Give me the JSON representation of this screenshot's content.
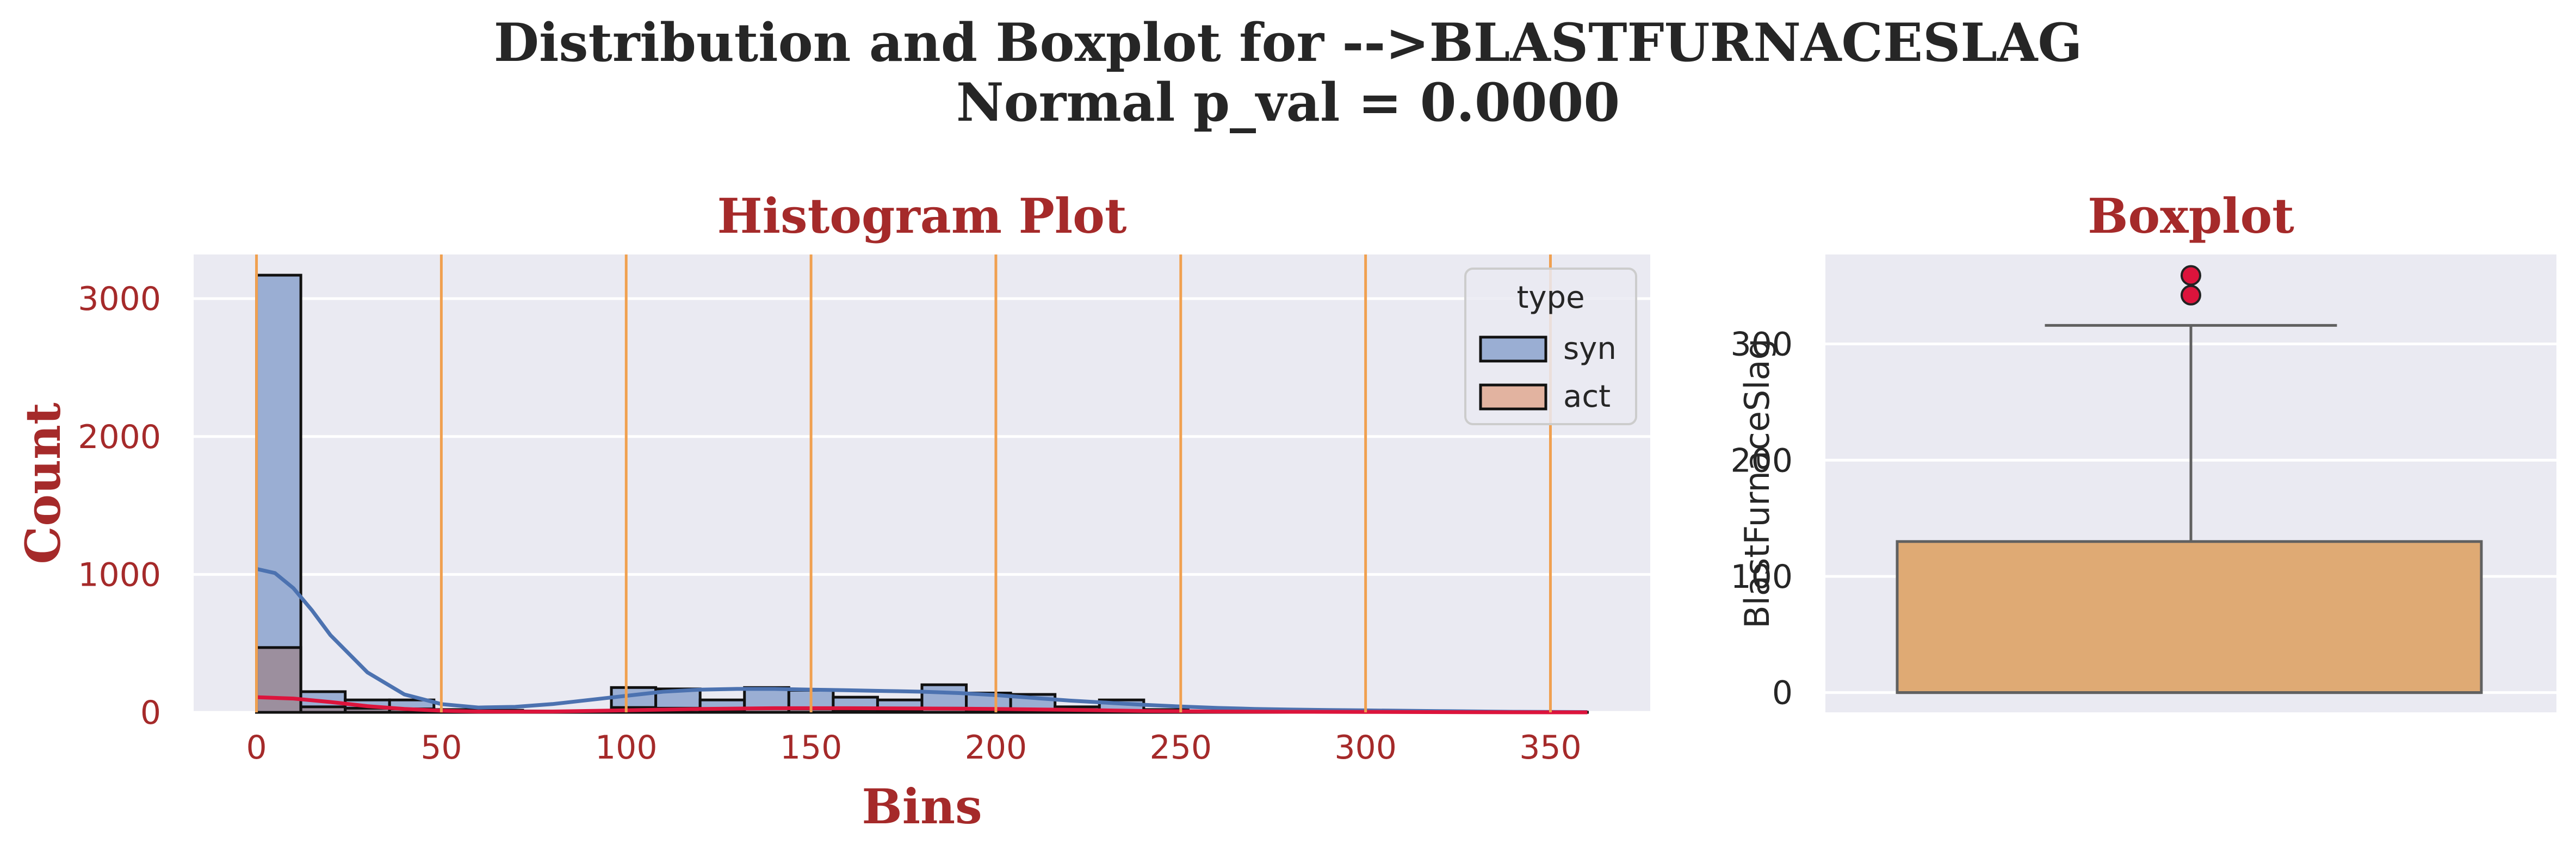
{
  "figure": {
    "suptitle_line1": "Distribution and Boxplot for -->BLASTFURNACESLAG",
    "suptitle_line2": "Normal p_val = 0.0000"
  },
  "colors": {
    "axes_bg": "#eaeaf2",
    "grid": "#ffffff",
    "title_red": "#a52a2a",
    "syn_fill": "#9aaed3",
    "syn_kde": "#4c72b0",
    "act_fill": "#e2b3a0",
    "act_kde": "#dc143c",
    "overlap_fill": "#9c8f9e",
    "vline": "#f0a050",
    "box_fill": "#dfaa74",
    "box_edge": "#606060",
    "outlier": "#dc143c"
  },
  "chart_data": [
    {
      "type": "bar",
      "subtype": "histogram",
      "title": "Histogram Plot",
      "xlabel": "Bins",
      "ylabel": "Count",
      "xlim": [
        -17,
        377
      ],
      "ylim": [
        0,
        3320
      ],
      "xticks": [
        0,
        50,
        100,
        150,
        200,
        250,
        300,
        350
      ],
      "yticks": [
        0,
        1000,
        2000,
        3000
      ],
      "bin_edges": [
        0,
        12,
        24,
        36,
        48,
        60,
        72,
        84,
        96,
        108,
        120,
        132,
        144,
        156,
        168,
        180,
        192,
        204,
        216,
        228,
        240,
        252,
        264,
        276,
        288,
        300,
        312,
        324,
        336,
        348,
        360
      ],
      "series": [
        {
          "name": "syn",
          "values": [
            3170,
            150,
            90,
            90,
            20,
            15,
            10,
            10,
            180,
            170,
            90,
            180,
            160,
            110,
            90,
            200,
            140,
            130,
            40,
            90,
            20,
            10,
            8,
            5,
            15,
            5,
            3,
            2,
            2,
            1
          ],
          "kde_x": [
            0,
            5,
            10,
            15,
            20,
            30,
            40,
            50,
            60,
            70,
            80,
            90,
            100,
            110,
            120,
            130,
            140,
            150,
            160,
            170,
            180,
            190,
            200,
            210,
            220,
            230,
            240,
            250,
            260,
            270,
            280,
            290,
            300,
            320,
            340,
            360
          ],
          "kde_y": [
            1040,
            1010,
            900,
            740,
            560,
            290,
            130,
            60,
            35,
            40,
            60,
            90,
            120,
            150,
            165,
            170,
            170,
            165,
            160,
            155,
            150,
            140,
            125,
            105,
            85,
            70,
            55,
            42,
            32,
            25,
            20,
            17,
            14,
            9,
            4,
            2
          ]
        },
        {
          "name": "act",
          "values": [
            470,
            40,
            30,
            25,
            10,
            8,
            5,
            5,
            35,
            30,
            20,
            30,
            25,
            20,
            15,
            30,
            20,
            20,
            8,
            12,
            4,
            2,
            2,
            1,
            3,
            1,
            1,
            0,
            0,
            0
          ],
          "kde_x": [
            0,
            10,
            20,
            30,
            40,
            50,
            60,
            70,
            80,
            100,
            120,
            140,
            160,
            180,
            200,
            220,
            240,
            260,
            280,
            300,
            330,
            360
          ],
          "kde_y": [
            110,
            100,
            75,
            45,
            25,
            12,
            6,
            5,
            6,
            15,
            25,
            30,
            30,
            28,
            25,
            18,
            10,
            6,
            4,
            3,
            1,
            0
          ]
        }
      ],
      "vlines": [
        0,
        50,
        100,
        150,
        200,
        250,
        300,
        350
      ],
      "legend": {
        "title": "type",
        "entries": [
          "syn",
          "act"
        ],
        "position": "top-right"
      },
      "grid": true
    },
    {
      "type": "box",
      "title": "Boxplot",
      "ylabel": "BlastFurnaceSlag",
      "ylim": [
        -17,
        377
      ],
      "yticks": [
        0,
        100,
        200,
        300
      ],
      "q1": 0,
      "median": 0,
      "q3": 130,
      "whisker_low": 0,
      "whisker_high": 316,
      "outliers": [
        342,
        359
      ],
      "grid": true
    }
  ]
}
